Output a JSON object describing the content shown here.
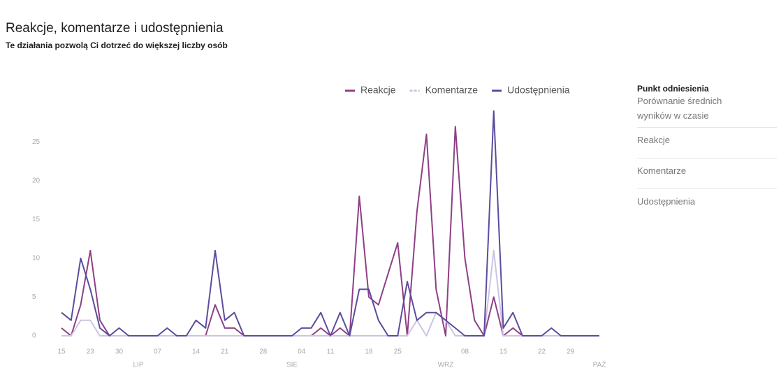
{
  "header": {
    "title": "Reakcje, komentarze i udostępnienia",
    "subtitle": "Te działania pozwolą Ci dotrzeć do większej liczby osób"
  },
  "sidebar": {
    "title": "Punkt odniesienia",
    "description": "Porównanie średnich wyników w czasie",
    "items": [
      "Reakcje",
      "Komentarze",
      "Udostępnienia"
    ]
  },
  "chart_data": {
    "type": "line",
    "categories": [
      "15",
      null,
      null,
      "23",
      null,
      null,
      "30",
      null,
      null,
      null,
      "07",
      null,
      null,
      null,
      "14",
      null,
      null,
      "21",
      null,
      null,
      null,
      "28",
      null,
      null,
      null,
      "04",
      null,
      null,
      "11",
      null,
      null,
      null,
      "18",
      null,
      null,
      "25",
      null,
      null,
      null,
      null,
      null,
      null,
      "08",
      null,
      null,
      null,
      "15",
      null,
      null,
      null,
      "22",
      null,
      null,
      "29",
      null,
      null,
      null
    ],
    "months": [
      null,
      null,
      null,
      null,
      null,
      null,
      null,
      null,
      "LIP",
      null,
      null,
      null,
      null,
      null,
      null,
      null,
      null,
      null,
      null,
      null,
      null,
      null,
      null,
      null,
      "SIE",
      null,
      null,
      null,
      null,
      null,
      null,
      null,
      null,
      null,
      null,
      null,
      null,
      null,
      null,
      null,
      "WRZ",
      null,
      null,
      null,
      null,
      null,
      null,
      null,
      null,
      null,
      null,
      null,
      null,
      null,
      null,
      null,
      "PAŹ"
    ],
    "series": [
      {
        "name": "Reakcje",
        "color": "#8e3f86",
        "values": [
          1,
          0,
          4,
          11,
          2,
          0,
          0,
          0,
          0,
          0,
          0,
          0,
          0,
          0,
          0,
          0,
          4,
          1,
          1,
          0,
          0,
          0,
          0,
          0,
          0,
          0,
          0,
          1,
          0,
          1,
          0,
          18,
          5,
          4,
          8,
          12,
          0,
          16,
          26,
          6,
          0,
          27,
          10,
          2,
          0,
          5,
          0,
          1,
          0,
          0,
          0,
          0,
          0,
          0,
          0,
          0,
          0
        ]
      },
      {
        "name": "Komentarze",
        "color": "#cdc3e2",
        "values": [
          0,
          0,
          2,
          2,
          0,
          0,
          0,
          0,
          0,
          0,
          0,
          0,
          0,
          0,
          0,
          0,
          0,
          0,
          0,
          0,
          0,
          0,
          0,
          0,
          0,
          0,
          0,
          0,
          0,
          0,
          0,
          0,
          0,
          0,
          0,
          0,
          0,
          2,
          0,
          3,
          2,
          0,
          0,
          0,
          0,
          11,
          0,
          0,
          0,
          0,
          0,
          0,
          0,
          0,
          0,
          0,
          0
        ]
      },
      {
        "name": "Udostępnienia",
        "color": "#5b4c9f",
        "values": [
          3,
          2,
          10,
          6,
          1,
          0,
          1,
          0,
          0,
          0,
          0,
          1,
          0,
          0,
          2,
          1,
          11,
          2,
          3,
          0,
          0,
          0,
          0,
          0,
          0,
          1,
          1,
          3,
          0,
          3,
          0,
          6,
          6,
          2,
          0,
          0,
          7,
          2,
          3,
          3,
          2,
          1,
          0,
          0,
          0,
          29,
          1,
          3,
          0,
          0,
          0,
          1,
          0,
          0,
          0,
          0,
          0
        ]
      }
    ],
    "ylim": [
      0,
      30
    ],
    "yticks": [
      0,
      5,
      10,
      15,
      20,
      25
    ],
    "grid": false
  }
}
